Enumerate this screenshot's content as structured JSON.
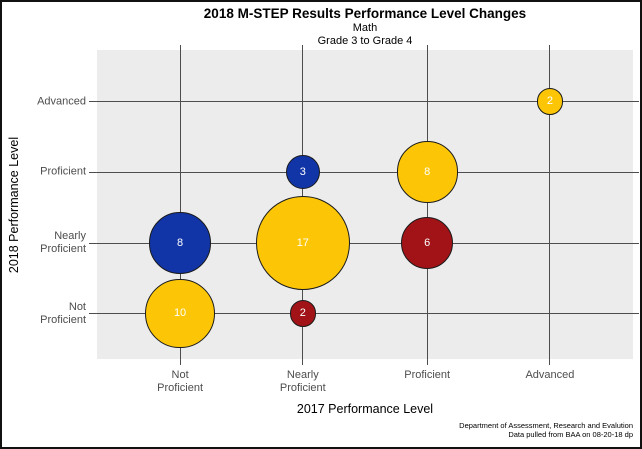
{
  "chart_data": {
    "type": "bubble",
    "title": "2018 M-STEP Results Performance Level Changes",
    "subtitle_lines": [
      "Math",
      "Grade 3 to Grade 4"
    ],
    "xlabel": "2017 Performance Level",
    "ylabel": "2018 Performance Level",
    "x_categories": [
      "Not Proficient",
      "Nearly Proficient",
      "Proficient",
      "Advanced"
    ],
    "y_categories": [
      "Not Proficient",
      "Nearly Proficient",
      "Proficient",
      "Advanced"
    ],
    "bubbles": [
      {
        "x2017": "Not Proficient",
        "y2018": "Not Proficient",
        "count": 10,
        "change": "no_change"
      },
      {
        "x2017": "Not Proficient",
        "y2018": "Nearly Proficient",
        "count": 8,
        "change": "improved"
      },
      {
        "x2017": "Nearly Proficient",
        "y2018": "Not Proficient",
        "count": 2,
        "change": "declined"
      },
      {
        "x2017": "Nearly Proficient",
        "y2018": "Nearly Proficient",
        "count": 17,
        "change": "no_change"
      },
      {
        "x2017": "Nearly Proficient",
        "y2018": "Proficient",
        "count": 3,
        "change": "improved"
      },
      {
        "x2017": "Proficient",
        "y2018": "Nearly Proficient",
        "count": 6,
        "change": "declined"
      },
      {
        "x2017": "Proficient",
        "y2018": "Proficient",
        "count": 8,
        "change": "no_change"
      },
      {
        "x2017": "Advanced",
        "y2018": "Advanced",
        "count": 2,
        "change": "no_change"
      }
    ],
    "colors": {
      "no_change": "#FCC606",
      "improved": "#1134A6",
      "declined": "#A11316",
      "grid": "#4D4D4D",
      "plot_background": "#ECECEC",
      "bubble_label": "#FFFFFF"
    },
    "size_encoding": "bubble area proportional to count",
    "legend": "none",
    "grid": "on"
  },
  "footer": {
    "line1": "Department of Assessment, Research and Evalution",
    "line2": "Data pulled from BAA on 08-20-18 dp"
  }
}
